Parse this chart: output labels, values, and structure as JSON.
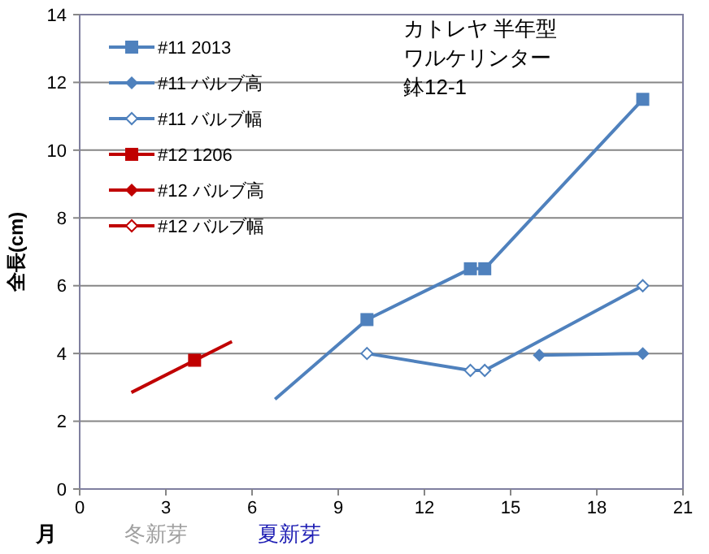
{
  "chart_data": {
    "type": "line",
    "xlabel": "月",
    "ylabel": "全長(cm)",
    "annotations": [
      "カトレヤ  半年型",
      "ワルケリンター",
      "鉢12-1",
      "冬新芽",
      "夏新芽"
    ],
    "xlim": [
      0,
      21
    ],
    "xticks": [
      0,
      3,
      6,
      9,
      12,
      15,
      18,
      21
    ],
    "ylim": [
      0,
      14
    ],
    "yticks": [
      0,
      2,
      4,
      6,
      8,
      10,
      12,
      14
    ],
    "grid": "y",
    "legend": "top left",
    "series": [
      {
        "name": "#11 2013",
        "color": "#4f81bd",
        "marker": "square",
        "x": [
          10,
          13.6,
          14.1,
          19.6
        ],
        "values": [
          5,
          6.5,
          6.5,
          11.5
        ]
      },
      {
        "name": "#11 バルブ高",
        "color": "#4f81bd",
        "marker": "diamond",
        "x": [
          16,
          19.6
        ],
        "values": [
          3.95,
          4.0
        ]
      },
      {
        "name": "#11 バルブ幅",
        "color": "#4f81bd",
        "marker": "diamond-open",
        "x": [
          10,
          13.6,
          14.1,
          19.6
        ],
        "values": [
          4,
          3.5,
          3.5,
          6
        ]
      },
      {
        "name": "#12 1206",
        "color": "#c00000",
        "marker": "square",
        "x": [
          4
        ],
        "values": [
          3.8
        ]
      },
      {
        "name": "#12 バルブ高",
        "color": "#c00000",
        "marker": "diamond"
      },
      {
        "name": "#12 バルブ幅",
        "color": "#c00000",
        "marker": "diamond-open"
      },
      {
        "color": "#4f81bd",
        "marker": "none",
        "x": [
          6.8,
          10
        ],
        "values": [
          2.65,
          5
        ]
      },
      {
        "color": "#c00000",
        "marker": "none",
        "x": [
          1.8,
          5.3
        ],
        "values": [
          2.85,
          4.35
        ]
      }
    ]
  }
}
